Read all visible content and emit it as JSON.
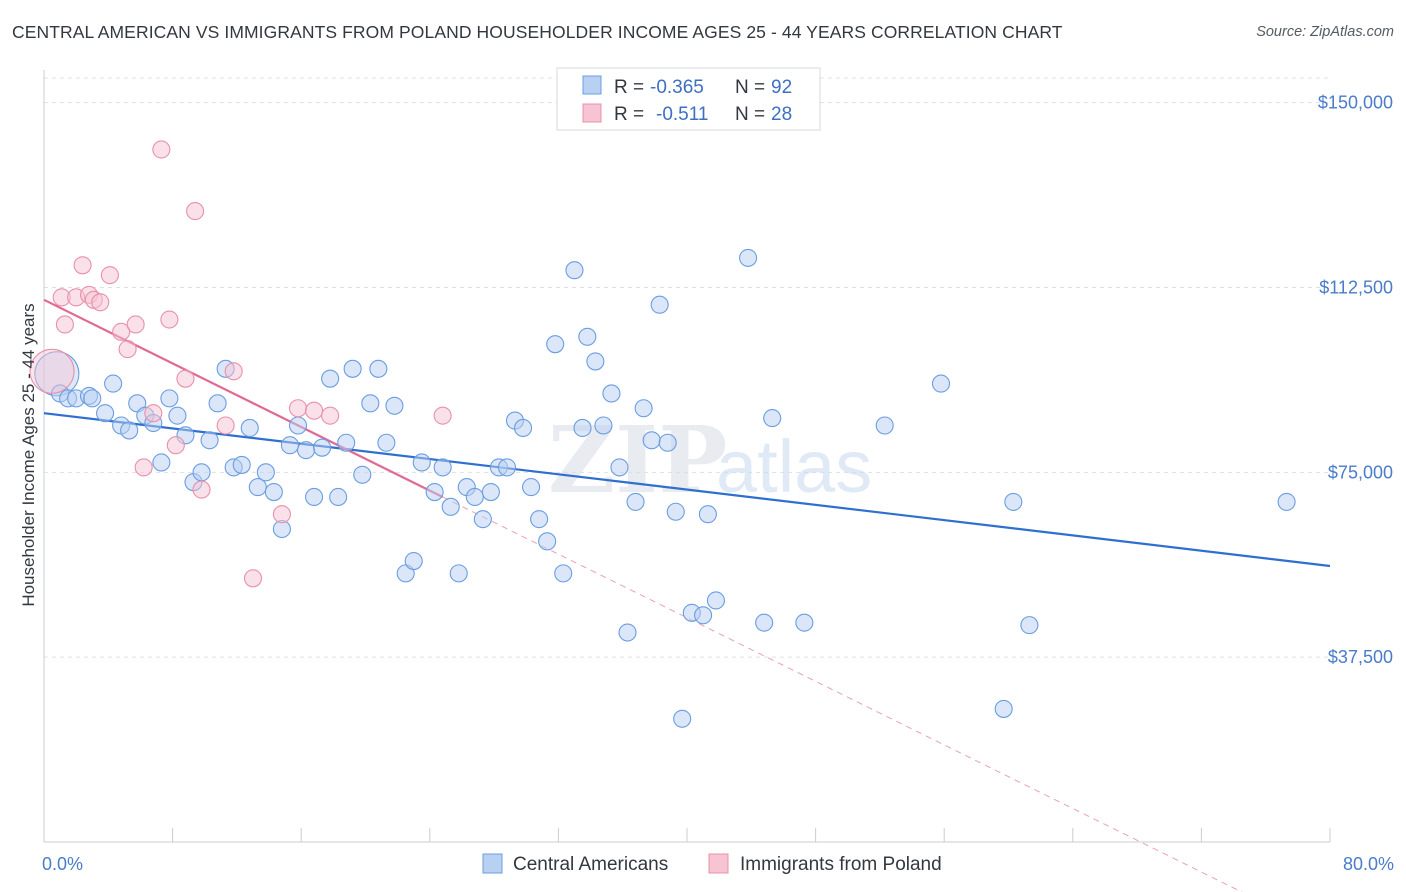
{
  "title": "CENTRAL AMERICAN VS IMMIGRANTS FROM POLAND HOUSEHOLDER INCOME AGES 25 - 44 YEARS CORRELATION CHART",
  "source": "Source: ZipAtlas.com",
  "watermark": {
    "zip": "ZIP",
    "atlas": "atlas"
  },
  "legend": {
    "rows": [
      {
        "r_label": "R =",
        "r_value": "-0.365",
        "n_label": "N =",
        "n_value": "92"
      },
      {
        "r_label": "R =",
        "r_value": "-0.511",
        "n_label": "N =",
        "n_value": "28"
      }
    ]
  },
  "chart_data": {
    "type": "scatter",
    "ylabel": "Householder Income Ages 25 - 44 years",
    "xlim": [
      0,
      80
    ],
    "ylim": [
      0,
      155000
    ],
    "x_tick_labels": [
      {
        "value": 0,
        "label": "0.0%"
      },
      {
        "value": 80,
        "label": "80.0%"
      }
    ],
    "y_tick_labels": [
      {
        "value": 37500,
        "label": "$37,500"
      },
      {
        "value": 75000,
        "label": "$75,000"
      },
      {
        "value": 112500,
        "label": "$112,500"
      },
      {
        "value": 150000,
        "label": "$150,000"
      }
    ],
    "grid": "horizontal dashed",
    "legend_position": "top-center",
    "series": [
      {
        "name": "Central Americans",
        "color": "#6a9de0",
        "fill": "#b8d0f2",
        "r": -0.365,
        "n": 92,
        "trend": {
          "x": [
            0,
            80
          ],
          "y": [
            87000,
            56000
          ]
        },
        "points": [
          [
            0.8,
            95000
          ],
          [
            1.0,
            91000
          ],
          [
            1.5,
            90000
          ],
          [
            2.0,
            90000
          ],
          [
            2.8,
            90500
          ],
          [
            3.0,
            90000
          ],
          [
            3.8,
            87000
          ],
          [
            4.3,
            93000
          ],
          [
            4.8,
            84500
          ],
          [
            5.3,
            83500
          ],
          [
            5.8,
            89000
          ],
          [
            6.3,
            86500
          ],
          [
            6.8,
            85000
          ],
          [
            7.3,
            77000
          ],
          [
            7.8,
            90000
          ],
          [
            8.3,
            86500
          ],
          [
            8.8,
            82500
          ],
          [
            9.3,
            73000
          ],
          [
            9.8,
            75000
          ],
          [
            10.3,
            81500
          ],
          [
            10.8,
            89000
          ],
          [
            11.3,
            96000
          ],
          [
            11.8,
            76000
          ],
          [
            12.3,
            76500
          ],
          [
            12.8,
            84000
          ],
          [
            13.3,
            72000
          ],
          [
            13.8,
            75000
          ],
          [
            14.3,
            71000
          ],
          [
            14.8,
            63500
          ],
          [
            15.3,
            80500
          ],
          [
            15.8,
            84500
          ],
          [
            16.3,
            79500
          ],
          [
            16.8,
            70000
          ],
          [
            17.3,
            80000
          ],
          [
            17.8,
            94000
          ],
          [
            18.3,
            70000
          ],
          [
            18.8,
            81000
          ],
          [
            19.2,
            96000
          ],
          [
            19.8,
            74500
          ],
          [
            20.3,
            89000
          ],
          [
            20.8,
            96000
          ],
          [
            21.3,
            81000
          ],
          [
            21.8,
            88500
          ],
          [
            22.5,
            54500
          ],
          [
            23.0,
            57000
          ],
          [
            23.5,
            77000
          ],
          [
            24.3,
            71000
          ],
          [
            24.8,
            76000
          ],
          [
            25.3,
            68000
          ],
          [
            25.8,
            54500
          ],
          [
            26.3,
            72000
          ],
          [
            26.8,
            70000
          ],
          [
            27.3,
            65500
          ],
          [
            27.8,
            71000
          ],
          [
            28.3,
            76000
          ],
          [
            28.8,
            76000
          ],
          [
            29.3,
            85500
          ],
          [
            29.8,
            84000
          ],
          [
            30.3,
            72000
          ],
          [
            30.8,
            65500
          ],
          [
            31.3,
            61000
          ],
          [
            31.8,
            101000
          ],
          [
            32.3,
            54500
          ],
          [
            33.0,
            116000
          ],
          [
            33.5,
            84000
          ],
          [
            33.8,
            102500
          ],
          [
            34.3,
            97500
          ],
          [
            34.8,
            84500
          ],
          [
            35.3,
            91000
          ],
          [
            35.8,
            76000
          ],
          [
            36.3,
            42500
          ],
          [
            36.8,
            69000
          ],
          [
            37.3,
            88000
          ],
          [
            37.8,
            81500
          ],
          [
            38.3,
            109000
          ],
          [
            38.8,
            81000
          ],
          [
            39.3,
            67000
          ],
          [
            39.7,
            25000
          ],
          [
            40.3,
            46500
          ],
          [
            41.0,
            46000
          ],
          [
            41.3,
            66500
          ],
          [
            41.8,
            49000
          ],
          [
            43.8,
            118500
          ],
          [
            45.3,
            86000
          ],
          [
            47.3,
            44500
          ],
          [
            52.3,
            84500
          ],
          [
            55.8,
            93000
          ],
          [
            59.7,
            27000
          ],
          [
            60.3,
            69000
          ],
          [
            61.3,
            44000
          ],
          [
            77.3,
            69000
          ],
          [
            44.8,
            44500
          ]
        ]
      },
      {
        "name": "Immigrants from Poland",
        "color": "#e890aa",
        "fill": "#f6c4d3",
        "r": -0.511,
        "n": 28,
        "trend": {
          "x": [
            0,
            24.8
          ],
          "y": [
            110000,
            70000
          ]
        },
        "trend_extended": {
          "x": [
            24.8,
            80
          ],
          "y": [
            70000,
            -19000
          ]
        },
        "points": [
          [
            0.5,
            95500
          ],
          [
            1.1,
            110500
          ],
          [
            1.3,
            105000
          ],
          [
            2.0,
            110500
          ],
          [
            2.4,
            117000
          ],
          [
            2.8,
            111000
          ],
          [
            3.1,
            110000
          ],
          [
            3.5,
            109500
          ],
          [
            4.1,
            115000
          ],
          [
            4.8,
            103500
          ],
          [
            5.2,
            100000
          ],
          [
            5.7,
            105000
          ],
          [
            6.2,
            76000
          ],
          [
            6.8,
            87000
          ],
          [
            7.3,
            140500
          ],
          [
            7.8,
            106000
          ],
          [
            8.2,
            80500
          ],
          [
            8.8,
            94000
          ],
          [
            9.4,
            128000
          ],
          [
            9.8,
            71500
          ],
          [
            11.3,
            84500
          ],
          [
            11.8,
            95500
          ],
          [
            13.0,
            53500
          ],
          [
            14.8,
            66500
          ],
          [
            15.8,
            88000
          ],
          [
            16.8,
            87500
          ],
          [
            17.8,
            86500
          ],
          [
            24.8,
            86500
          ]
        ]
      }
    ]
  }
}
